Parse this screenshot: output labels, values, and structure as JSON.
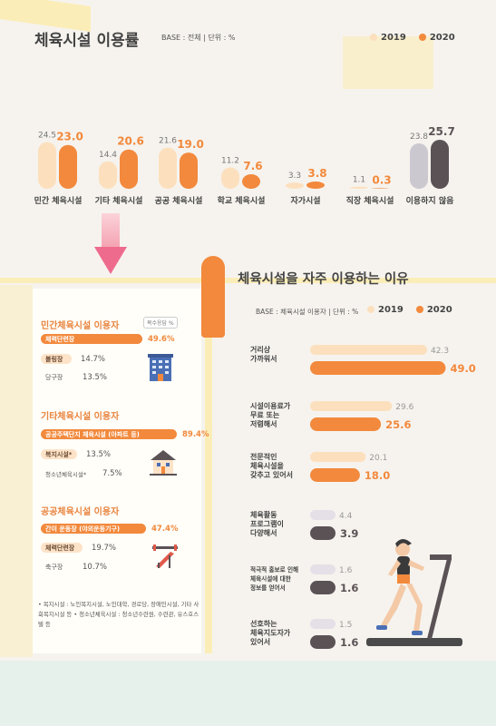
{
  "top": {
    "title": "체육시설 이용률",
    "base_note": "BASE : 전체 | 단위 : %"
  },
  "legend": {
    "y2019": "2019",
    "y2020": "2020"
  },
  "colors": {
    "y2019": "#fce0be",
    "y2020": "#f2893c",
    "none2019": "#ccc8d0",
    "none2020": "#5b5256",
    "accent_pink": "#ee6b8d"
  },
  "chart_data": [
    {
      "type": "bar",
      "title": "체육시설 이용률",
      "categories": [
        "민간 체육시설",
        "기타 체육시설",
        "공공 체육시설",
        "학교 체육시설",
        "자가시설",
        "직장 체육시설",
        "이용하지 않음"
      ],
      "series": [
        {
          "name": "2019",
          "values": [
            24.5,
            14.4,
            21.6,
            11.2,
            3.3,
            1.1,
            23.8
          ]
        },
        {
          "name": "2020",
          "values": [
            23.0,
            20.6,
            19.0,
            7.6,
            3.8,
            0.3,
            25.7
          ]
        }
      ]
    },
    {
      "type": "bar",
      "title": "체육시설을 자주 이용하는 이유",
      "orientation": "horizontal",
      "categories": [
        "거리상 가까워서",
        "시설이용료가 무료 또는 저렴해서",
        "전문적인 체육시설을 갖추고 있어서",
        "체육활동 프로그램이 다양해서",
        "적극적 홍보로 인해 체육시설에 대한 정보를 얻어서",
        "선호하는 체육지도자가 있어서"
      ],
      "series": [
        {
          "name": "2019",
          "values": [
            42.3,
            29.6,
            20.1,
            4.4,
            1.6,
            1.5
          ]
        },
        {
          "name": "2020",
          "values": [
            49.0,
            25.6,
            18.0,
            3.9,
            1.6,
            1.6
          ]
        }
      ]
    }
  ],
  "top_labels": [
    [
      "24.5",
      "23.0"
    ],
    [
      "14.4",
      "20.6"
    ],
    [
      "21.6",
      "19.0"
    ],
    [
      "11.2",
      "7.6"
    ],
    [
      "3.3",
      "3.8"
    ],
    [
      "1.1",
      "0.3"
    ],
    [
      "23.8",
      "25.7"
    ]
  ],
  "right": {
    "title": "체육시설을 자주 이용하는 이유",
    "base_note": "BASE : 체육시설 이용자 | 단위 : %",
    "labels": [
      [
        "거리상",
        "가까워서"
      ],
      [
        "시설이용료가",
        "무료 또는",
        "저렴해서"
      ],
      [
        "전문적인",
        "체육시설을",
        "갖추고 있어서"
      ],
      [
        "체육활동",
        "프로그램이",
        "다양해서"
      ],
      [
        "적극적 홍보로 인해",
        "체육시설에 대한",
        "정보를 얻어서"
      ],
      [
        "선호하는",
        "체육지도자가",
        "있어서"
      ]
    ],
    "values2019": [
      "42.3",
      "29.6",
      "20.1",
      "4.4",
      "1.6",
      "1.5"
    ],
    "values2020": [
      "49.0",
      "25.6",
      "18.0",
      "3.9",
      "1.6",
      "1.6"
    ]
  },
  "left_panel": {
    "note": "복수응답 %",
    "groups": [
      {
        "title": "민간체육시설 이용자",
        "rows": [
          {
            "label": "체력단련장",
            "value": "49.6%",
            "pct": 0.496,
            "style": "hi"
          },
          {
            "label": "볼링장",
            "value": "14.7%",
            "pct": 0.147,
            "style": "mid"
          },
          {
            "label": "당구장",
            "value": "13.5%",
            "pct": 0.135,
            "style": "none"
          }
        ]
      },
      {
        "title": "기타체육시설 이용자",
        "rows": [
          {
            "label": "공공주택단지 체육시설 (아파트 등)",
            "value": "89.4%",
            "pct": 0.894,
            "style": "hi"
          },
          {
            "label": "복지시설*",
            "value": "13.5%",
            "pct": 0.135,
            "style": "mid"
          },
          {
            "label": "청소년체육시설*",
            "value": "7.5%",
            "pct": 0.075,
            "style": "none"
          }
        ]
      },
      {
        "title": "공공체육시설 이용자",
        "rows": [
          {
            "label": "간이 운동장 (야외운동기구)",
            "value": "47.4%",
            "pct": 0.474,
            "style": "hi"
          },
          {
            "label": "체력단련장",
            "value": "19.7%",
            "pct": 0.197,
            "style": "mid"
          },
          {
            "label": "축구장",
            "value": "10.7%",
            "pct": 0.107,
            "style": "none"
          }
        ]
      }
    ],
    "footnote": "• 복지시설 : 노인복지시설, 노인대학, 경로당, 장애인시설, 기타 사회복지시설 등 • 청소년체육시설 : 청소년수련원, 수련관, 유스호스텔 등"
  },
  "icons": [
    "building-icon",
    "house-icon",
    "bench-press-icon",
    "runner-on-treadmill-icon",
    "down-arrow-icon"
  ]
}
